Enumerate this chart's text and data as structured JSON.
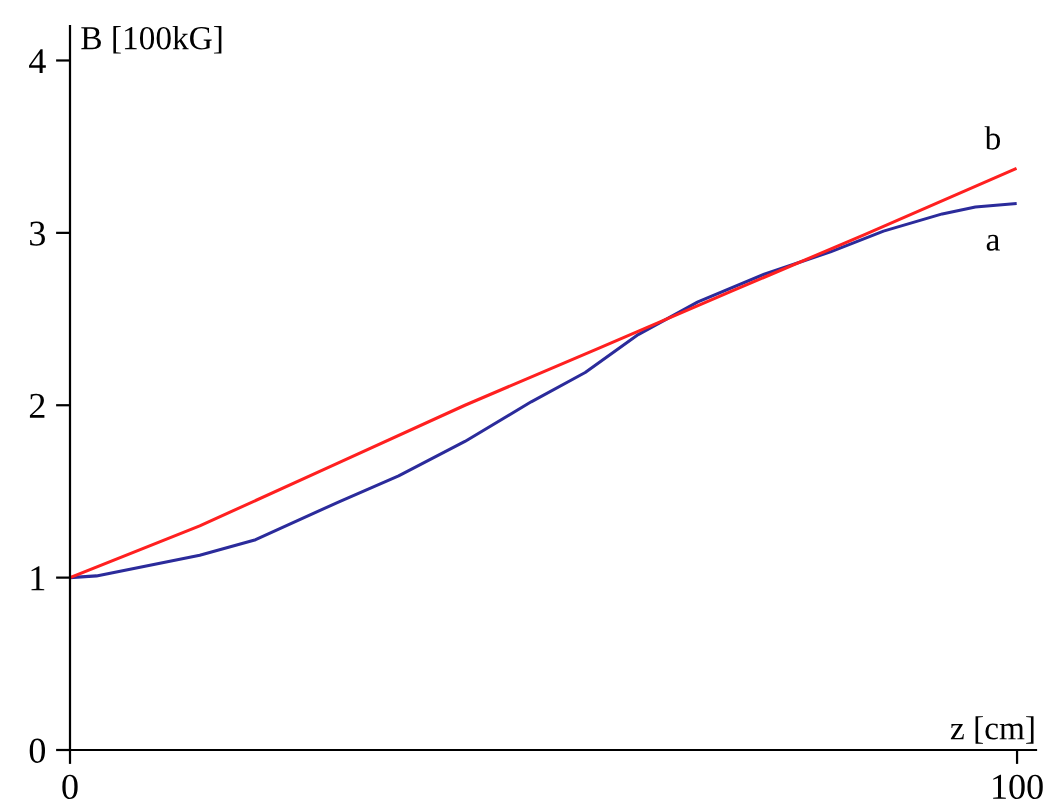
{
  "chart_data": {
    "type": "line",
    "xlabel": "z [cm]",
    "ylabel": "B [100kG]",
    "xlim": [
      0,
      102
    ],
    "ylim": [
      0,
      4.2
    ],
    "xticks": [
      0,
      100
    ],
    "yticks": [
      0,
      1,
      2,
      3,
      4
    ],
    "grid": false,
    "legend": false,
    "marker": "none",
    "line_style": "solid",
    "series": [
      {
        "name": "a",
        "color": "#2b2b9b",
        "x": [
          0,
          2.8,
          13.7,
          19.6,
          28.4,
          34.7,
          41.7,
          48.7,
          54.4,
          60,
          66.3,
          73.3,
          80.3,
          85.9,
          92.1,
          95.6,
          99.8
        ],
        "values": [
          1.0,
          1.01,
          1.13,
          1.22,
          1.44,
          1.59,
          1.79,
          2.02,
          2.19,
          2.41,
          2.6,
          2.76,
          2.89,
          3.01,
          3.11,
          3.15,
          3.17
        ]
      },
      {
        "name": "b",
        "color": "#ff2020",
        "x": [
          0,
          13.7,
          27.7,
          41.7,
          55.8,
          69.8,
          83.9,
          99.8
        ],
        "values": [
          1.0,
          1.3,
          1.65,
          2.0,
          2.33,
          2.66,
          2.99,
          3.37
        ]
      }
    ]
  }
}
